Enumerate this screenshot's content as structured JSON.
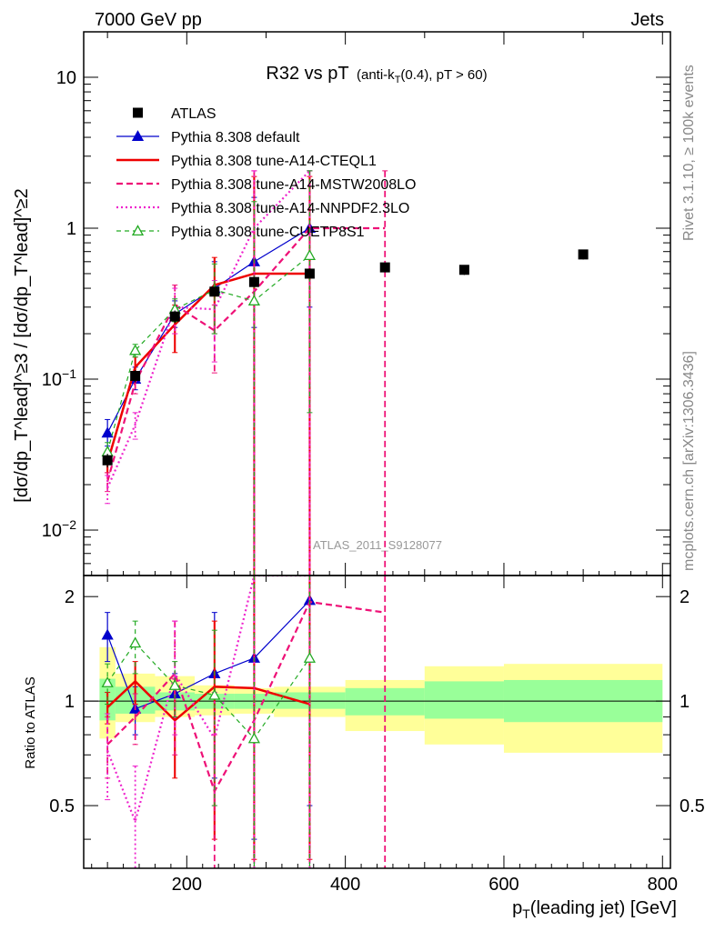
{
  "header": {
    "left": "7000 GeV pp",
    "right": "Jets"
  },
  "side_texts": {
    "rivet": "Rivet 3.1.10, ≥ 100k events",
    "mcplots": "mcplots.cern.ch [arXiv:1306.3436]"
  },
  "watermark": "ATLAS_2011_S9128077",
  "chart_data": {
    "type": "scatter",
    "title_main": "R32 vs pT",
    "title_sub": "(anti-k",
    "title_sub_sub": "T",
    "title_sub_rest": "(0.4), pT > 60)",
    "xlabel": "p",
    "xlabel_sub": "T",
    "xlabel_rest": "(leading jet) [GeV]",
    "ylabel": "[dσ/dp_T^lead]^≥3 / [dσ/dp_T^lead]^≥2",
    "ratio_ylabel": "Ratio to ATLAS",
    "xlim": [
      70,
      810
    ],
    "ylim_top": [
      0.005,
      20
    ],
    "ylim_ratio": [
      0.33,
      2.3
    ],
    "x_ticks": [
      200,
      400,
      600,
      800
    ],
    "y_ticks_top": [
      {
        "v": 0.01,
        "base": "10",
        "exp": "−2"
      },
      {
        "v": 0.1,
        "base": "10",
        "exp": "−1"
      },
      {
        "v": 1,
        "base": "1",
        "exp": ""
      },
      {
        "v": 10,
        "base": "10",
        "exp": ""
      }
    ],
    "y_ticks_ratio": [
      0.5,
      1,
      2
    ],
    "ratio_bands": [
      {
        "x0": 90,
        "x1": 110,
        "g": [
          0.88,
          1.16
        ],
        "y": [
          0.78,
          1.43
        ]
      },
      {
        "x0": 110,
        "x1": 160,
        "g": [
          0.92,
          1.1
        ],
        "y": [
          0.87,
          1.2
        ]
      },
      {
        "x0": 160,
        "x1": 210,
        "g": [
          0.94,
          1.06
        ],
        "y": [
          0.9,
          1.18
        ]
      },
      {
        "x0": 210,
        "x1": 260,
        "g": [
          0.95,
          1.05
        ],
        "y": [
          0.91,
          1.11
        ]
      },
      {
        "x0": 260,
        "x1": 310,
        "g": [
          0.95,
          1.05
        ],
        "y": [
          0.92,
          1.09
        ]
      },
      {
        "x0": 310,
        "x1": 400,
        "g": [
          0.95,
          1.06
        ],
        "y": [
          0.9,
          1.1
        ]
      },
      {
        "x0": 400,
        "x1": 500,
        "g": [
          0.91,
          1.09
        ],
        "y": [
          0.82,
          1.15
        ]
      },
      {
        "x0": 500,
        "x1": 600,
        "g": [
          0.89,
          1.14
        ],
        "y": [
          0.75,
          1.26
        ]
      },
      {
        "x0": 600,
        "x1": 800,
        "g": [
          0.87,
          1.15
        ],
        "y": [
          0.71,
          1.28
        ]
      }
    ],
    "atlas": {
      "name": "ATLAS",
      "x": [
        100,
        135,
        185,
        235,
        285,
        355,
        450,
        550,
        700
      ],
      "y": [
        0.029,
        0.105,
        0.26,
        0.38,
        0.44,
        0.5,
        0.55,
        0.53,
        0.67
      ],
      "err": [
        0.003,
        0.01,
        0.025,
        0.025,
        0.025,
        0.03,
        0.04,
        0.04,
        0.05
      ]
    },
    "series": [
      {
        "name": "Pythia 8.308 default",
        "color": "#0000cc",
        "dash": "",
        "width": 1.2,
        "marker": "triangle",
        "filled": true,
        "x": [
          100,
          135,
          185,
          235,
          285,
          355
        ],
        "y": [
          0.044,
          0.1,
          0.27,
          0.4,
          0.6,
          1.0
        ],
        "lo": [
          0.036,
          0.085,
          0.22,
          0.2,
          0.22,
          0.3
        ],
        "hi": [
          0.054,
          0.12,
          0.33,
          0.6,
          1.6,
          2.4
        ],
        "ratio": [
          1.55,
          0.95,
          1.05,
          1.2,
          1.33,
          1.95
        ],
        "rlo": [
          1.3,
          0.8,
          0.9,
          0.6,
          0.4,
          0.5
        ],
        "rhi": [
          1.8,
          1.1,
          1.2,
          1.8,
          2.4,
          2.4
        ]
      },
      {
        "name": "Pythia 8.308 tune-A14-CTEQL1",
        "color": "#ee0000",
        "dash": "",
        "width": 2.5,
        "marker": "none",
        "filled": false,
        "x": [
          100,
          135,
          185,
          235,
          285,
          355
        ],
        "y": [
          0.028,
          0.12,
          0.23,
          0.42,
          0.5,
          0.5
        ],
        "lo": [
          0.024,
          0.1,
          0.15,
          0.2,
          0.004,
          0.004
        ],
        "hi": [
          0.032,
          0.14,
          0.31,
          0.64,
          2.2,
          2.2
        ],
        "ratio": [
          0.96,
          1.14,
          0.88,
          1.1,
          1.09,
          0.98
        ],
        "rlo": [
          0.86,
          0.98,
          0.6,
          0.4,
          0.35,
          0.35
        ],
        "rhi": [
          1.06,
          1.3,
          1.16,
          1.7,
          2.3,
          2.3
        ]
      },
      {
        "name": "Pythia 8.308 tune-A14-MSTW2008LO",
        "color": "#ee1177",
        "dash": "7,4",
        "width": 2.2,
        "marker": "none",
        "filled": false,
        "x": [
          100,
          135,
          185,
          235,
          285,
          355,
          450
        ],
        "y": [
          0.021,
          0.095,
          0.31,
          0.21,
          0.38,
          1.0,
          1.0
        ],
        "lo": [
          0.018,
          0.08,
          0.2,
          0.11,
          0.004,
          0.004,
          0.004
        ],
        "hi": [
          0.024,
          0.11,
          0.42,
          0.31,
          2.4,
          2.4,
          2.4
        ],
        "ratio": [
          0.75,
          0.9,
          1.2,
          0.55,
          0.88,
          1.93,
          1.8
        ],
        "rlo": [
          0.6,
          0.75,
          0.7,
          0.3,
          0.3,
          0.3,
          0.3
        ],
        "rhi": [
          0.9,
          1.05,
          1.7,
          0.8,
          2.3,
          2.3,
          2.3
        ]
      },
      {
        "name": "Pythia 8.308 tune-A14-NNPDF2.3LO",
        "color": "#ee22cc",
        "dash": "2,3",
        "width": 2.2,
        "marker": "none",
        "filled": false,
        "x": [
          100,
          135,
          185,
          235,
          285,
          355
        ],
        "y": [
          0.019,
          0.05,
          0.3,
          0.29,
          1.0,
          2.4
        ],
        "lo": [
          0.015,
          0.04,
          0.2,
          0.13,
          0.004,
          0.004
        ],
        "hi": [
          0.023,
          0.06,
          0.4,
          0.45,
          2.4,
          2.4
        ],
        "ratio": [
          0.72,
          0.45,
          1.2,
          0.78,
          2.3,
          2.3
        ],
        "rlo": [
          0.52,
          0.3,
          0.8,
          0.5,
          0.3,
          0.3
        ],
        "rhi": [
          0.92,
          0.65,
          1.7,
          1.06,
          2.3,
          2.3
        ]
      },
      {
        "name": "Pythia 8.308 tune-CUETP8S1",
        "color": "#22aa22",
        "dash": "5,4",
        "width": 1.2,
        "marker": "triangle",
        "filled": false,
        "x": [
          100,
          135,
          185,
          235,
          285,
          355
        ],
        "y": [
          0.033,
          0.155,
          0.29,
          0.39,
          0.33,
          0.66
        ],
        "lo": [
          0.028,
          0.14,
          0.24,
          0.2,
          0.004,
          0.06
        ],
        "hi": [
          0.038,
          0.17,
          0.34,
          0.58,
          1.5,
          2.4
        ],
        "ratio": [
          1.13,
          1.47,
          1.11,
          1.04,
          0.78,
          1.33
        ],
        "rlo": [
          0.98,
          1.2,
          0.9,
          0.5,
          0.33,
          0.33
        ],
        "rhi": [
          1.28,
          1.7,
          1.3,
          1.6,
          2.3,
          2.3
        ]
      }
    ]
  }
}
